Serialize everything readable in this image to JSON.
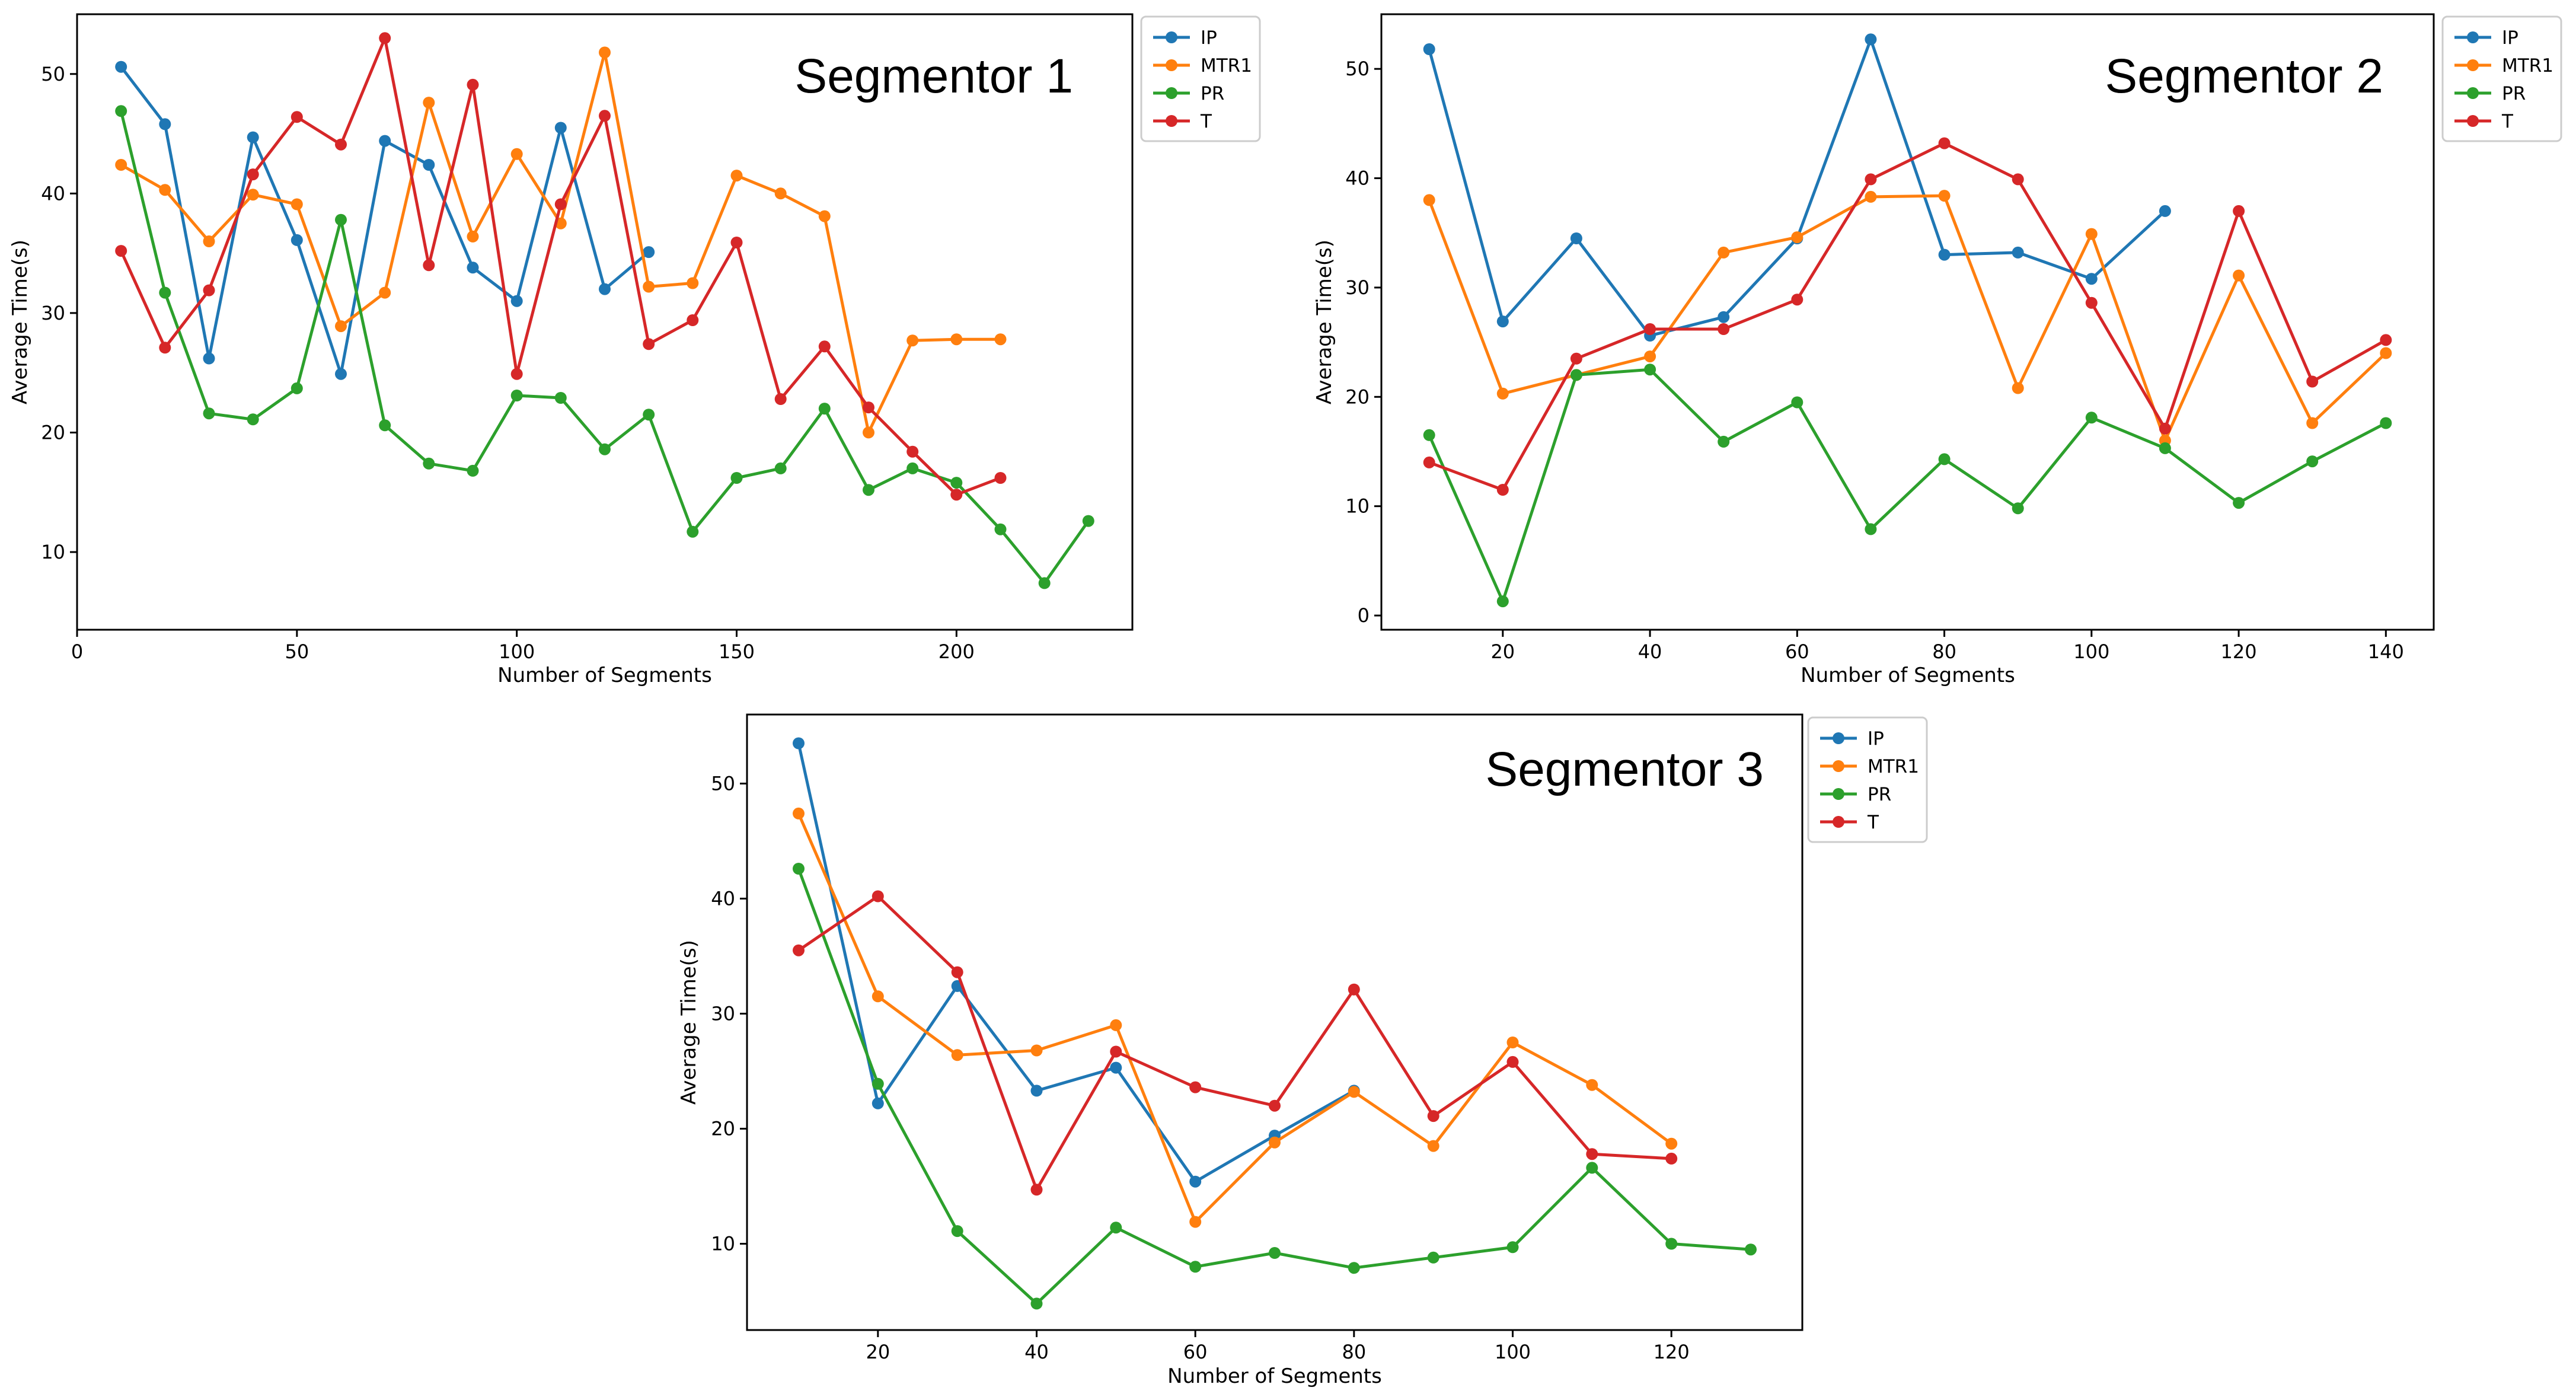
{
  "colors": {
    "IP": "#1f77b4",
    "MTR1": "#ff7f0e",
    "PR": "#2ca02c",
    "T": "#d62728",
    "axes": "#000000",
    "legend_border": "#cccccc"
  },
  "chart_data": [
    {
      "type": "line",
      "title": "Segmentor 1",
      "xlabel": "Number of Segments",
      "ylabel": "Average Time(s)",
      "xlim": [
        0,
        240
      ],
      "ylim": [
        3.5,
        55
      ],
      "xticks": [
        0,
        50,
        100,
        150,
        200
      ],
      "yticks": [
        10,
        20,
        30,
        40,
        50
      ],
      "grid": false,
      "legend": "outside-top-right",
      "series": [
        {
          "name": "IP",
          "x": [
            10,
            20,
            30,
            40,
            50,
            60,
            70,
            80,
            90,
            100,
            110,
            120,
            130
          ],
          "y": [
            50.6,
            45.8,
            26.2,
            44.7,
            36.1,
            24.9,
            44.4,
            42.4,
            33.8,
            31.0,
            45.5,
            32.0,
            35.1
          ]
        },
        {
          "name": "MTR1",
          "x": [
            10,
            20,
            30,
            40,
            50,
            60,
            70,
            80,
            90,
            100,
            110,
            120,
            130,
            140,
            150,
            160,
            170,
            180,
            190,
            200,
            210
          ],
          "y": [
            42.4,
            40.3,
            36.0,
            39.9,
            39.1,
            28.9,
            31.7,
            47.6,
            36.4,
            43.3,
            37.5,
            51.8,
            32.2,
            32.5,
            41.5,
            40.0,
            38.1,
            20.0,
            27.7,
            27.8,
            27.8
          ]
        },
        {
          "name": "PR",
          "x": [
            10,
            20,
            30,
            40,
            50,
            60,
            70,
            80,
            90,
            100,
            110,
            120,
            130,
            140,
            150,
            160,
            170,
            180,
            190,
            200,
            210,
            220,
            230
          ],
          "y": [
            46.9,
            31.7,
            21.6,
            21.1,
            23.7,
            37.8,
            20.6,
            17.4,
            16.8,
            23.1,
            22.9,
            18.6,
            21.5,
            11.7,
            16.2,
            17.0,
            22.0,
            15.2,
            17.0,
            15.8,
            11.9,
            7.4,
            12.6
          ]
        },
        {
          "name": "T",
          "x": [
            10,
            20,
            30,
            40,
            50,
            60,
            70,
            80,
            90,
            100,
            110,
            120,
            130,
            140,
            150,
            160,
            170,
            180,
            190,
            200,
            210
          ],
          "y": [
            35.2,
            27.1,
            31.9,
            41.6,
            46.4,
            44.1,
            53.0,
            34.0,
            49.1,
            24.9,
            39.1,
            46.5,
            27.4,
            29.4,
            35.9,
            22.8,
            27.2,
            22.1,
            18.4,
            14.8,
            16.2
          ]
        }
      ]
    },
    {
      "type": "line",
      "title": "Segmentor 2",
      "xlabel": "Number of Segments",
      "ylabel": "Average Time(s)",
      "xlim": [
        3.5,
        146.5
      ],
      "ylim": [
        -1.3,
        55
      ],
      "xticks": [
        20,
        40,
        60,
        80,
        100,
        120,
        140
      ],
      "yticks": [
        0,
        10,
        20,
        30,
        40,
        50
      ],
      "grid": false,
      "legend": "outside-top-right",
      "series": [
        {
          "name": "IP",
          "x": [
            10,
            20,
            30,
            40,
            50,
            60,
            70,
            80,
            90,
            100,
            110
          ],
          "y": [
            51.8,
            26.9,
            34.5,
            25.6,
            27.3,
            34.5,
            52.7,
            33.0,
            33.2,
            30.8,
            37.0
          ]
        },
        {
          "name": "MTR1",
          "x": [
            10,
            20,
            30,
            40,
            50,
            60,
            70,
            80,
            90,
            100,
            110,
            120,
            130,
            140
          ],
          "y": [
            38.0,
            20.3,
            22.0,
            23.7,
            33.2,
            34.6,
            38.3,
            38.4,
            20.8,
            34.9,
            16.0,
            31.1,
            17.6,
            24.0
          ]
        },
        {
          "name": "PR",
          "x": [
            10,
            20,
            30,
            40,
            50,
            60,
            70,
            80,
            90,
            100,
            110,
            120,
            130,
            140
          ],
          "y": [
            16.5,
            1.3,
            22.0,
            22.5,
            15.9,
            19.5,
            7.9,
            14.3,
            9.8,
            18.1,
            15.3,
            10.3,
            14.1,
            17.6
          ]
        },
        {
          "name": "T",
          "x": [
            10,
            20,
            30,
            40,
            50,
            60,
            70,
            80,
            90,
            100,
            110,
            120,
            130,
            140
          ],
          "y": [
            14.0,
            11.5,
            23.5,
            26.2,
            26.2,
            28.9,
            39.9,
            43.2,
            39.9,
            28.6,
            17.1,
            37.0,
            21.4,
            25.2
          ]
        }
      ]
    },
    {
      "type": "line",
      "title": "Segmentor 3",
      "xlabel": "Number of Segments",
      "ylabel": "Average Time(s)",
      "xlim": [
        3.5,
        136.5
      ],
      "ylim": [
        2.5,
        56
      ],
      "xticks": [
        20,
        40,
        60,
        80,
        100,
        120
      ],
      "yticks": [
        10,
        20,
        30,
        40,
        50
      ],
      "grid": false,
      "legend": "outside-top-right",
      "series": [
        {
          "name": "IP",
          "x": [
            10,
            20,
            30,
            40,
            50,
            60,
            70,
            80
          ],
          "y": [
            53.5,
            22.2,
            32.4,
            23.3,
            25.3,
            15.4,
            19.4,
            23.3
          ]
        },
        {
          "name": "MTR1",
          "x": [
            10,
            20,
            30,
            40,
            50,
            60,
            70,
            80,
            90,
            100,
            110,
            120
          ],
          "y": [
            47.4,
            31.5,
            26.4,
            26.8,
            29.0,
            11.9,
            18.8,
            23.2,
            18.5,
            27.5,
            23.8,
            18.7
          ]
        },
        {
          "name": "PR",
          "x": [
            10,
            20,
            30,
            40,
            50,
            60,
            70,
            80,
            90,
            100,
            110,
            120,
            130
          ],
          "y": [
            42.6,
            23.9,
            11.1,
            4.8,
            11.4,
            8.0,
            9.2,
            7.9,
            8.8,
            9.7,
            16.6,
            10.0,
            9.5
          ]
        },
        {
          "name": "T",
          "x": [
            10,
            20,
            30,
            40,
            50,
            60,
            70,
            80,
            90,
            100,
            110,
            120
          ],
          "y": [
            35.5,
            40.2,
            33.6,
            14.7,
            26.7,
            23.6,
            22.0,
            32.1,
            21.1,
            25.8,
            17.8,
            17.4
          ]
        }
      ]
    }
  ]
}
